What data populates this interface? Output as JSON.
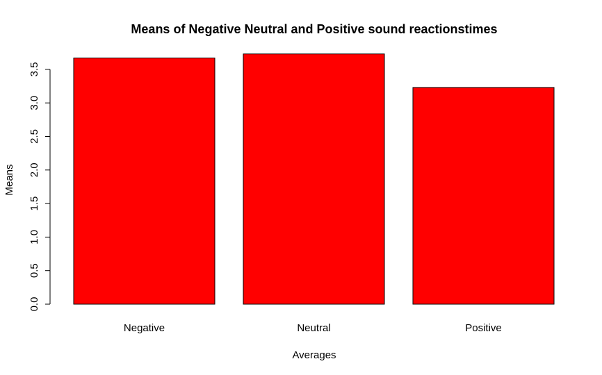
{
  "chart_data": {
    "type": "bar",
    "title": "Means of Negative Neutral and Positive sound reactionstimes",
    "xlabel": "Averages",
    "ylabel": "Means",
    "categories": [
      "Negative",
      "Neutral",
      "Positive"
    ],
    "values": [
      3.67,
      3.73,
      3.23
    ],
    "ylim": [
      0,
      3.5
    ],
    "yticks": [
      "0.0",
      "0.5",
      "1.0",
      "1.5",
      "2.0",
      "2.5",
      "3.0",
      "3.5"
    ],
    "bar_color": "#ff0000",
    "border_color": "#000000",
    "grid": false,
    "legend": "none"
  }
}
